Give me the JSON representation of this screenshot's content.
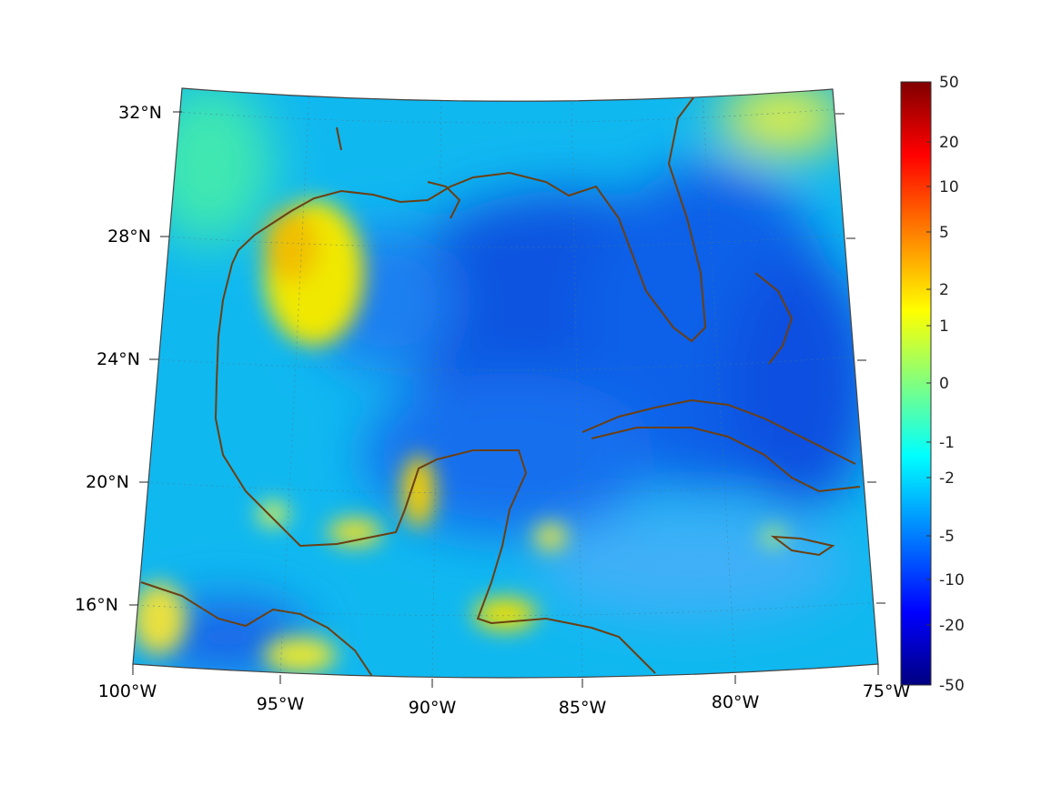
{
  "map": {
    "lat_labels": [
      "32°N",
      "28°N",
      "24°N",
      "20°N",
      "16°N"
    ],
    "lon_labels": [
      "100°W",
      "95°W",
      "90°W",
      "85°W",
      "80°W",
      "75°W"
    ],
    "field_colors": {
      "coastline": "#6b3f12",
      "grid": "#4a7a8a",
      "background": "#1ec8f0"
    }
  },
  "colorbar": {
    "tick_labels": [
      "50",
      "20",
      "10",
      "5",
      "2",
      "1",
      "0",
      "-1",
      "-2",
      "-5",
      "-10",
      "-20",
      "-50"
    ],
    "colormap": [
      "#800000",
      "#ff0000",
      "#ff8000",
      "#ffff00",
      "#80ff80",
      "#00ffff",
      "#0080ff",
      "#0000ff",
      "#000080"
    ]
  }
}
